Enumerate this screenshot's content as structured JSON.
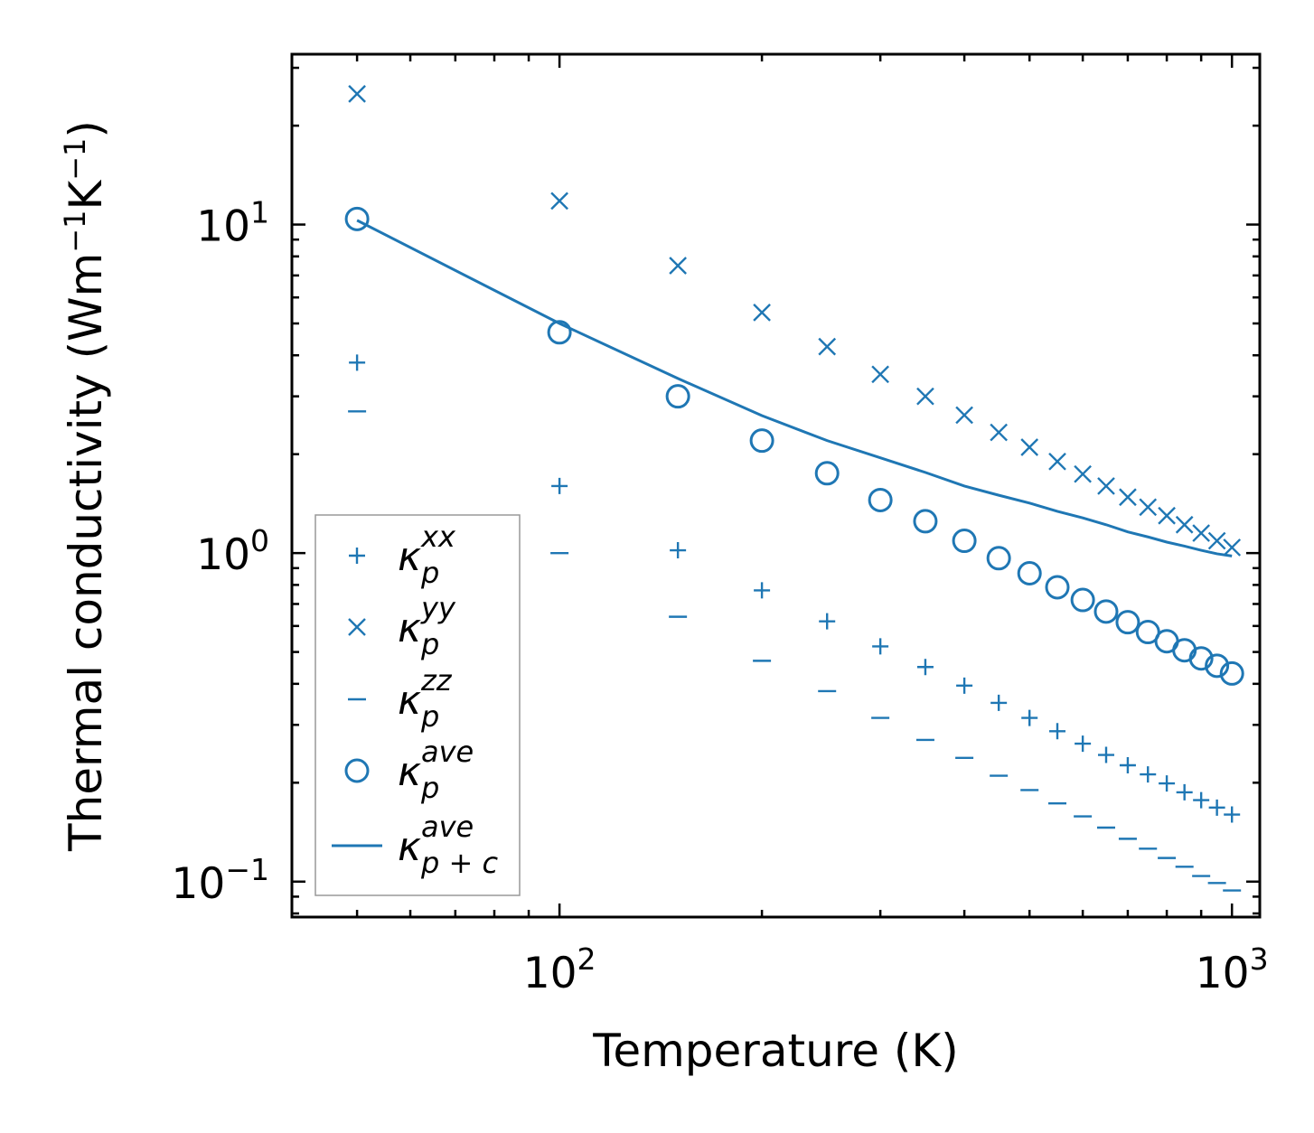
{
  "chart_data": {
    "type": "scatter",
    "xscale": "log",
    "yscale": "log",
    "xlabel": "Temperature (K)",
    "ylabel_parts": {
      "base": "Thermal conductivity (Wm",
      "exp1": "−1",
      "mid": "K",
      "exp2": "−1",
      "end": ")"
    },
    "xlim": [
      40,
      1100
    ],
    "ylim": [
      0.078,
      33
    ],
    "x_ticks": [
      {
        "value": 100,
        "base": "10",
        "exp": "2"
      },
      {
        "value": 1000,
        "base": "10",
        "exp": "3"
      }
    ],
    "y_ticks": [
      {
        "value": 0.1,
        "base": "10",
        "exp": "−1"
      },
      {
        "value": 1,
        "base": "10",
        "exp": "0"
      },
      {
        "value": 10,
        "base": "10",
        "exp": "1"
      }
    ],
    "legend_position": "lower-left",
    "color": "#1f77b4",
    "series": [
      {
        "name": "kappa_p_xx",
        "label": "κ",
        "sub": "p",
        "sup": "xx",
        "marker": "plus",
        "x": [
          50,
          100,
          150,
          200,
          250,
          300,
          350,
          400,
          450,
          500,
          550,
          600,
          650,
          700,
          750,
          800,
          850,
          900,
          950,
          1000
        ],
        "y": [
          3.8,
          1.6,
          1.02,
          0.77,
          0.62,
          0.52,
          0.45,
          0.395,
          0.35,
          0.315,
          0.287,
          0.263,
          0.243,
          0.226,
          0.212,
          0.199,
          0.187,
          0.177,
          0.168,
          0.16
        ]
      },
      {
        "name": "kappa_p_yy",
        "label": "κ",
        "sub": "p",
        "sup": "yy",
        "marker": "x",
        "x": [
          50,
          100,
          150,
          200,
          250,
          300,
          350,
          400,
          450,
          500,
          550,
          600,
          650,
          700,
          750,
          800,
          850,
          900,
          950,
          1000
        ],
        "y": [
          25,
          11.8,
          7.5,
          5.4,
          4.25,
          3.5,
          3.0,
          2.63,
          2.33,
          2.1,
          1.9,
          1.74,
          1.6,
          1.48,
          1.38,
          1.3,
          1.22,
          1.15,
          1.09,
          1.04
        ]
      },
      {
        "name": "kappa_p_zz",
        "label": "κ",
        "sub": "p",
        "sup": "zz",
        "marker": "hline",
        "x": [
          50,
          100,
          150,
          200,
          250,
          300,
          350,
          400,
          450,
          500,
          550,
          600,
          650,
          700,
          750,
          800,
          850,
          900,
          950,
          1000
        ],
        "y": [
          2.7,
          1.0,
          0.64,
          0.47,
          0.38,
          0.315,
          0.27,
          0.238,
          0.21,
          0.19,
          0.173,
          0.158,
          0.146,
          0.135,
          0.126,
          0.118,
          0.111,
          0.104,
          0.099,
          0.094
        ]
      },
      {
        "name": "kappa_p_ave",
        "label": "κ",
        "sub": "p",
        "sup": "ave",
        "marker": "circle",
        "x": [
          50,
          100,
          150,
          200,
          250,
          300,
          350,
          400,
          450,
          500,
          550,
          600,
          650,
          700,
          750,
          800,
          850,
          900,
          950,
          1000
        ],
        "y": [
          10.4,
          4.7,
          3.0,
          2.2,
          1.75,
          1.45,
          1.25,
          1.09,
          0.965,
          0.868,
          0.787,
          0.72,
          0.664,
          0.616,
          0.575,
          0.539,
          0.506,
          0.478,
          0.454,
          0.43
        ]
      },
      {
        "name": "kappa_p_c_ave",
        "label": "κ",
        "sub": "p + c",
        "sup": "ave",
        "marker": "line",
        "x": [
          50,
          100,
          150,
          200,
          250,
          300,
          350,
          400,
          450,
          500,
          550,
          600,
          650,
          700,
          750,
          800,
          850,
          900,
          950,
          1000
        ],
        "y": [
          10.3,
          5.0,
          3.4,
          2.62,
          2.2,
          1.95,
          1.76,
          1.6,
          1.5,
          1.42,
          1.34,
          1.28,
          1.22,
          1.16,
          1.12,
          1.08,
          1.05,
          1.02,
          0.995,
          0.98
        ]
      }
    ]
  }
}
